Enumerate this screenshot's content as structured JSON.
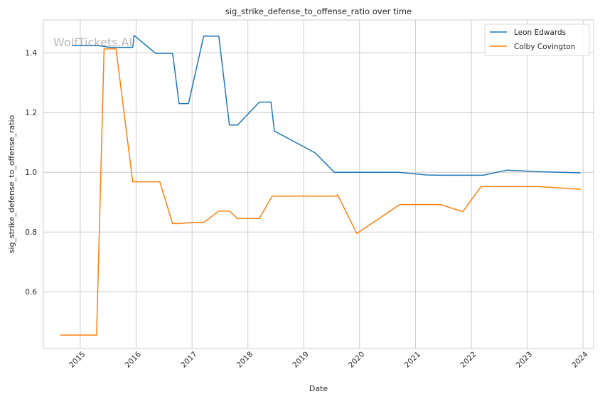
{
  "chart_data": {
    "type": "line",
    "title": "sig_strike_defense_to_offense_ratio over time",
    "xlabel": "Date",
    "ylabel": "sig_strike_defense_to_offense_ratio",
    "watermark": "WolfTickets.AI",
    "xlim": [
      "2014-05-05",
      "2024-03-10"
    ],
    "ylim": [
      0.41,
      1.51
    ],
    "x_ticks": [
      "2015",
      "2016",
      "2017",
      "2018",
      "2019",
      "2020",
      "2021",
      "2022",
      "2023",
      "2024"
    ],
    "y_ticks": [
      0.6,
      0.8,
      1.0,
      1.2,
      1.4
    ],
    "y_tick_labels": [
      "0.6",
      "0.8",
      "1.0",
      "1.2",
      "1.4"
    ],
    "grid": true,
    "legend_position": "top-right",
    "series": [
      {
        "name": "Leon Edwards",
        "color": "#1f77b4",
        "points": [
          [
            "2014-11-08",
            1.425
          ],
          [
            "2015-04-18",
            1.425
          ],
          [
            "2015-07-15",
            1.418
          ],
          [
            "2015-12-10",
            1.418
          ],
          [
            "2015-12-19",
            1.458
          ],
          [
            "2016-05-08",
            1.398
          ],
          [
            "2016-08-27",
            1.398
          ],
          [
            "2016-10-08",
            1.23
          ],
          [
            "2016-12-09",
            1.23
          ],
          [
            "2017-03-18",
            1.456
          ],
          [
            "2017-06-25",
            1.456
          ],
          [
            "2017-09-02",
            1.158
          ],
          [
            "2017-10-25",
            1.158
          ],
          [
            "2018-03-17",
            1.235
          ],
          [
            "2018-06-01",
            1.235
          ],
          [
            "2018-06-23",
            1.138
          ],
          [
            "2019-03-16",
            1.065
          ],
          [
            "2019-07-20",
            1.0
          ],
          [
            "2020-09-12",
            1.0
          ],
          [
            "2021-03-13",
            0.991
          ],
          [
            "2021-06-12",
            0.99
          ],
          [
            "2022-03-19",
            0.99
          ],
          [
            "2022-08-20",
            1.007
          ],
          [
            "2023-03-18",
            1.002
          ],
          [
            "2023-12-16",
            0.998
          ]
        ]
      },
      {
        "name": "Colby Covington",
        "color": "#ff7f0e",
        "points": [
          [
            "2014-08-23",
            0.455
          ],
          [
            "2015-04-18",
            0.455
          ],
          [
            "2015-06-06",
            1.413
          ],
          [
            "2015-08-23",
            1.413
          ],
          [
            "2015-12-10",
            0.968
          ],
          [
            "2016-06-04",
            0.968
          ],
          [
            "2016-08-27",
            0.828
          ],
          [
            "2016-10-08",
            0.828
          ],
          [
            "2016-12-30",
            0.832
          ],
          [
            "2017-03-18",
            0.832
          ],
          [
            "2017-06-25",
            0.87
          ],
          [
            "2017-09-02",
            0.87
          ],
          [
            "2017-10-25",
            0.845
          ],
          [
            "2018-03-17",
            0.845
          ],
          [
            "2018-06-09",
            0.92
          ],
          [
            "2019-08-03",
            0.92
          ],
          [
            "2019-08-10",
            0.925
          ],
          [
            "2019-12-14",
            0.795
          ],
          [
            "2020-09-19",
            0.892
          ],
          [
            "2021-06-12",
            0.892
          ],
          [
            "2021-11-06",
            0.868
          ],
          [
            "2022-03-05",
            0.952
          ],
          [
            "2023-03-18",
            0.952
          ],
          [
            "2023-12-16",
            0.943
          ]
        ]
      }
    ]
  }
}
